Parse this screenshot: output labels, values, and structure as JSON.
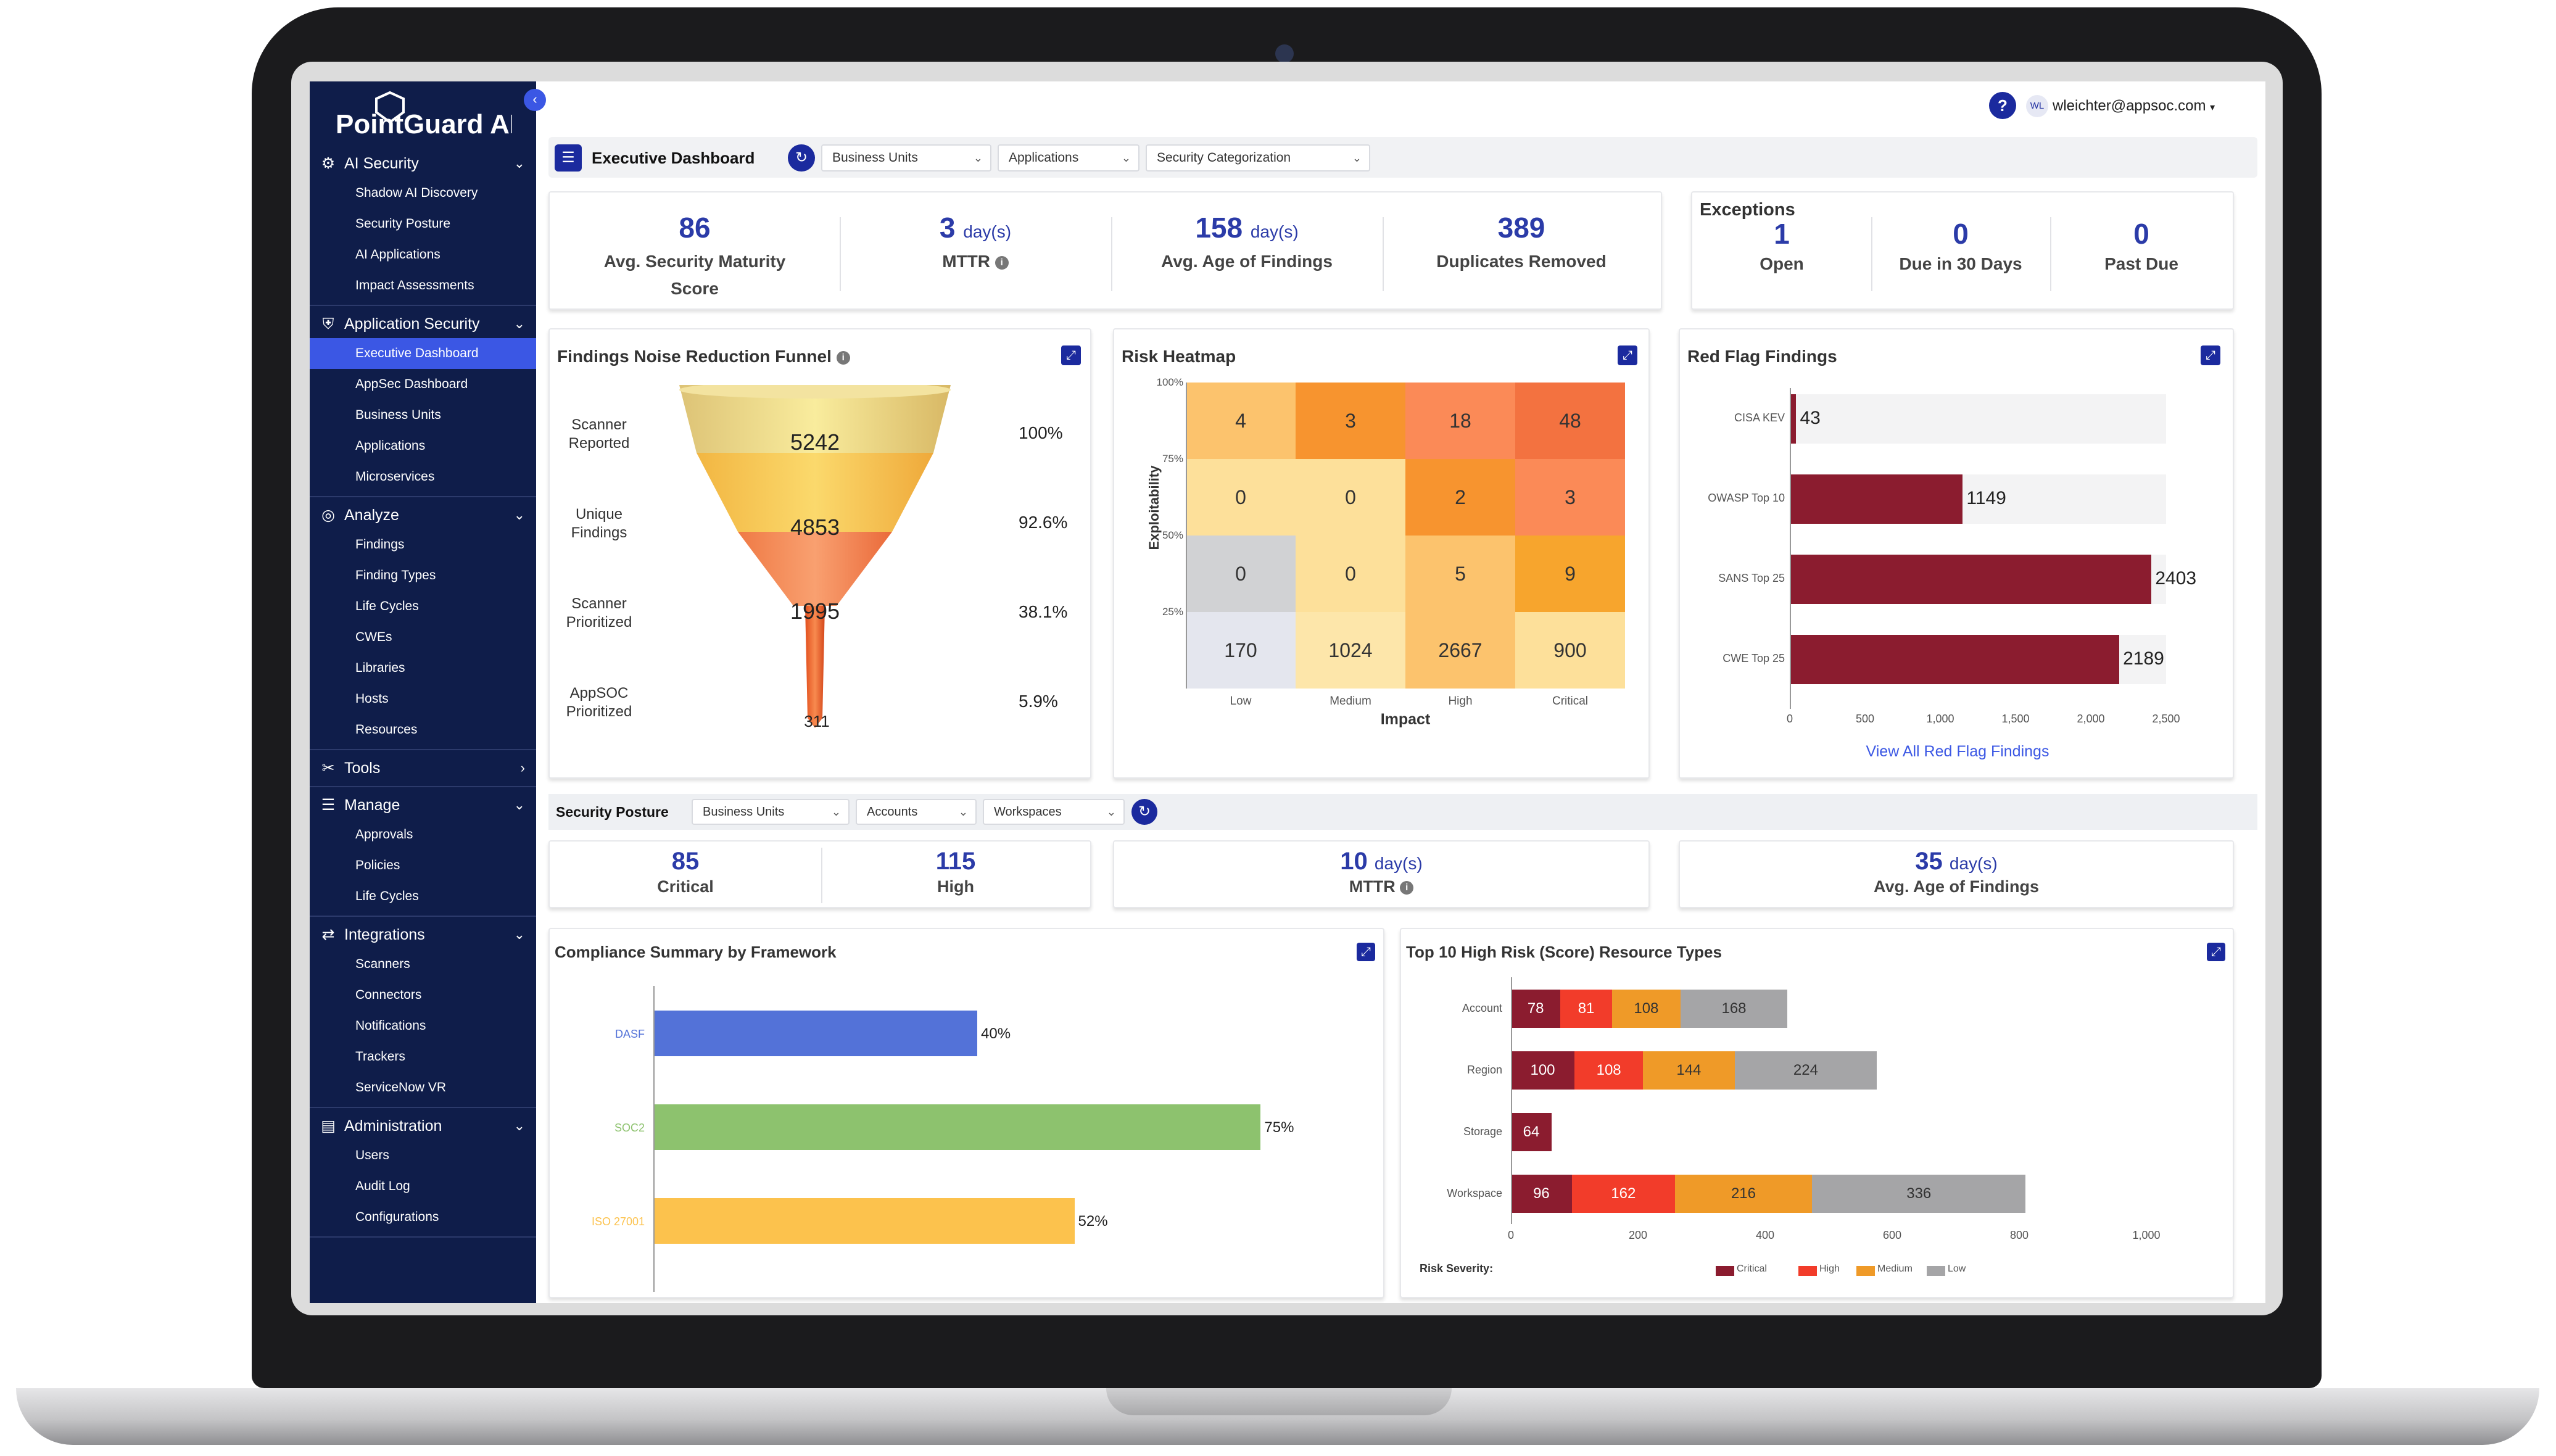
{
  "app": {
    "logo_text": "PointGuard AI",
    "user_initials": "WL",
    "user_email": "wleichter@appsoc.com",
    "help_label": "?"
  },
  "sidebar": {
    "sections": [
      {
        "label": "AI Security",
        "icon": "brain-icon",
        "items": [
          "Shadow AI Discovery",
          "Security Posture",
          "AI Applications",
          "Impact Assessments"
        ]
      },
      {
        "label": "Application Security",
        "icon": "shield-icon",
        "items": [
          "Executive Dashboard",
          "AppSec Dashboard",
          "Business Units",
          "Applications",
          "Microservices"
        ],
        "active": "Executive Dashboard"
      },
      {
        "label": "Analyze",
        "icon": "analyze-icon",
        "items": [
          "Findings",
          "Finding Types",
          "Life Cycles",
          "CWEs",
          "Libraries",
          "Hosts",
          "Resources"
        ]
      },
      {
        "label": "Tools",
        "icon": "tools-icon",
        "items": []
      },
      {
        "label": "Manage",
        "icon": "list-icon",
        "items": [
          "Approvals",
          "Policies",
          "Life Cycles"
        ]
      },
      {
        "label": "Integrations",
        "icon": "integrations-icon",
        "items": [
          "Scanners",
          "Connectors",
          "Notifications",
          "Trackers",
          "ServiceNow VR"
        ]
      },
      {
        "label": "Administration",
        "icon": "admin-icon",
        "items": [
          "Users",
          "Audit Log",
          "Configurations"
        ]
      }
    ]
  },
  "filterbar": {
    "title": "Executive Dashboard",
    "filters": [
      "Business Units",
      "Applications",
      "Security Categorization"
    ]
  },
  "kpis": [
    {
      "value": "86",
      "unit": "",
      "label": "Avg. Security Maturity Score"
    },
    {
      "value": "3",
      "unit": "day(s)",
      "label": "MTTR"
    },
    {
      "value": "158",
      "unit": "day(s)",
      "label": "Avg. Age of Findings"
    },
    {
      "value": "389",
      "unit": "",
      "label": "Duplicates Removed"
    }
  ],
  "exceptions": {
    "title": "Exceptions",
    "items": [
      {
        "value": "1",
        "label": "Open"
      },
      {
        "value": "0",
        "label": "Due in 30 Days"
      },
      {
        "value": "0",
        "label": "Past Due"
      }
    ]
  },
  "funnel": {
    "title": "Findings Noise Reduction Funnel",
    "stages": [
      {
        "label": "Scanner Reported",
        "value": "5242",
        "pct": "100%"
      },
      {
        "label": "Unique Findings",
        "value": "4853",
        "pct": "92.6%"
      },
      {
        "label": "Scanner Prioritized",
        "value": "1995",
        "pct": "38.1%"
      },
      {
        "label": "AppSOC Prioritized",
        "value": "311",
        "pct": "5.9%"
      }
    ]
  },
  "heatmap": {
    "title": "Risk Heatmap",
    "xlabel": "Impact",
    "ylabel": "Exploitability",
    "xcats": [
      "Low",
      "Medium",
      "High",
      "Critical"
    ],
    "yticks": [
      "100%",
      "75%",
      "50%",
      "25%"
    ],
    "rows": [
      [
        "4",
        "3",
        "18",
        "48"
      ],
      [
        "0",
        "0",
        "2",
        "3"
      ],
      [
        "0",
        "0",
        "5",
        "9"
      ],
      [
        "170",
        "1024",
        "2667",
        "900"
      ]
    ],
    "colors": [
      [
        "#fcc36d",
        "#f7942f",
        "#fb8a57",
        "#f37240"
      ],
      [
        "#fde09a",
        "#fde09a",
        "#f7942f",
        "#fb8a57"
      ],
      [
        "#d1d2d4",
        "#fde09a",
        "#fcc36d",
        "#f7a52d"
      ],
      [
        "#e4e6ee",
        "#fde6aa",
        "#fcc36d",
        "#fde09a"
      ]
    ]
  },
  "chart_data": [
    {
      "type": "bar",
      "title": "Red Flag Findings",
      "orientation": "horizontal",
      "categories": [
        "CISA KEV",
        "OWASP Top 10",
        "SANS Top 25",
        "CWE Top 25"
      ],
      "values": [
        43,
        1149,
        2403,
        2189
      ],
      "xticks": [
        "0",
        "500",
        "1,000",
        "1,500",
        "2,000",
        "2,500"
      ],
      "xlim": [
        0,
        2500
      ],
      "link": "View All Red Flag Findings",
      "color": "#8b1c2f"
    },
    {
      "type": "bar",
      "title": "Compliance Summary by Framework",
      "orientation": "horizontal",
      "categories": [
        "DASF",
        "SOC2",
        "ISO 27001"
      ],
      "values": [
        40,
        75,
        52
      ],
      "labels": [
        "40%",
        "75%",
        "52%"
      ],
      "colors": [
        "#5372d8",
        "#8dc26e",
        "#fcc24d"
      ],
      "xticks": [
        "0",
        "20",
        "40",
        "60",
        "80"
      ],
      "xlim": [
        0,
        80
      ]
    },
    {
      "type": "bar",
      "title": "Top 10 High Risk (Score) Resource Types",
      "orientation": "horizontal",
      "stacked": true,
      "categories": [
        "Account",
        "Region",
        "Storage",
        "Workspace"
      ],
      "series": [
        {
          "name": "Critical",
          "values": [
            78,
            100,
            64,
            96
          ],
          "color": "#8b1c2f"
        },
        {
          "name": "High",
          "values": [
            81,
            108,
            0,
            162
          ],
          "color": "#f23c2a"
        },
        {
          "name": "Medium",
          "values": [
            108,
            144,
            0,
            216
          ],
          "color": "#ef9a28"
        },
        {
          "name": "Low",
          "values": [
            168,
            224,
            0,
            336
          ],
          "color": "#a5a5a7"
        }
      ],
      "xticks": [
        "0",
        "200",
        "400",
        "600",
        "800",
        "1,000"
      ],
      "xlim": [
        0,
        1000
      ],
      "legend_title": "Risk Severity:"
    }
  ],
  "security_posture": {
    "title": "Security Posture",
    "filters": [
      "Business Units",
      "Accounts",
      "Workspaces"
    ],
    "stats": [
      {
        "value": "85",
        "label": "Critical"
      },
      {
        "value": "115",
        "label": "High"
      }
    ],
    "mttr": {
      "value": "10",
      "unit": "day(s)",
      "label": "MTTR"
    },
    "age": {
      "value": "35",
      "unit": "day(s)",
      "label": "Avg. Age of Findings"
    }
  }
}
